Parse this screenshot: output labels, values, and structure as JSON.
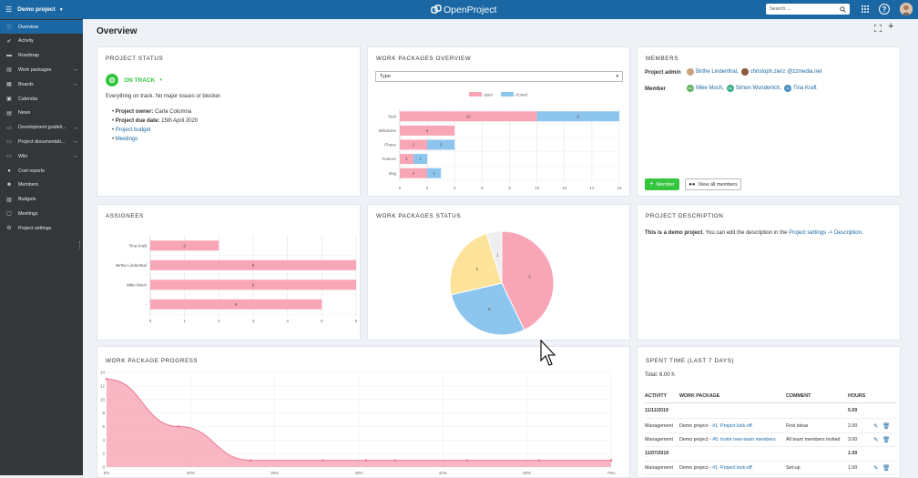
{
  "topbar": {
    "project_name": "Demo project",
    "logo_text": "OpenProject",
    "search_placeholder": "Search ..."
  },
  "sidebar": {
    "items": [
      {
        "label": "Overview",
        "icon": "info-icon",
        "active": true,
        "arrow": false
      },
      {
        "label": "Activity",
        "icon": "checkmark-icon",
        "active": false,
        "arrow": false
      },
      {
        "label": "Roadmap",
        "icon": "roadmap-icon",
        "active": false,
        "arrow": false
      },
      {
        "label": "Work packages",
        "icon": "work-packages-icon",
        "active": false,
        "arrow": true
      },
      {
        "label": "Boards",
        "icon": "boards-icon",
        "active": false,
        "arrow": true
      },
      {
        "label": "Calendar",
        "icon": "calendar-icon",
        "active": false,
        "arrow": false
      },
      {
        "label": "News",
        "icon": "news-icon",
        "active": false,
        "arrow": false
      },
      {
        "label": "Development guideli...",
        "icon": "forum-icon",
        "active": false,
        "arrow": true
      },
      {
        "label": "Project documentati...",
        "icon": "forum-icon",
        "active": false,
        "arrow": true
      },
      {
        "label": "Wiki",
        "icon": "wiki-icon",
        "active": false,
        "arrow": true
      },
      {
        "label": "Cost reports",
        "icon": "cost-reports-icon",
        "active": false,
        "arrow": false
      },
      {
        "label": "Members",
        "icon": "members-icon",
        "active": false,
        "arrow": false
      },
      {
        "label": "Budgets",
        "icon": "budgets-icon",
        "active": false,
        "arrow": false
      },
      {
        "label": "Meetings",
        "icon": "meetings-icon",
        "active": false,
        "arrow": false
      },
      {
        "label": "Project settings",
        "icon": "settings-icon",
        "active": false,
        "arrow": false
      }
    ]
  },
  "page": {
    "title": "Overview"
  },
  "project_status": {
    "title": "PROJECT STATUS",
    "status": "ON TRACK",
    "status_color": "#35c53f",
    "description": "Everything on track. No major issues or blocker.",
    "owner_label": "Project owner:",
    "owner_value": "Carla Columna",
    "due_label": "Project due date:",
    "due_value": "15th April 2020",
    "link_budget": "Project budget",
    "link_meetings": "Meetings"
  },
  "wp_overview": {
    "title": "WORK PACKAGES OVERVIEW",
    "select_value": "Type"
  },
  "members": {
    "title": "MEMBERS",
    "admin_label": "Project admin",
    "admins": [
      {
        "name": "Birthe Lindenthal",
        "initials": "",
        "avatar_color": "#c9a27e",
        "suffix": ","
      },
      {
        "name": "christoph.zierz @zzmedia.net",
        "initials": "",
        "avatar_color": "#8a5a3a",
        "suffix": ""
      }
    ],
    "member_label": "Member",
    "members": [
      {
        "name": "Mike Moch",
        "initials": "MM",
        "avatar_color": "#5fb35f",
        "suffix": ","
      },
      {
        "name": "Simon Wunderlich",
        "initials": "SW",
        "avatar_color": "#3cae86",
        "suffix": ","
      },
      {
        "name": "Tina Kraft",
        "initials": "TK",
        "avatar_color": "#4a8fc0",
        "suffix": ""
      }
    ],
    "add_button": "Member",
    "view_all_button": "View all members"
  },
  "assignees": {
    "title": "ASSIGNEES"
  },
  "wp_status": {
    "title": "WORK PACKAGES STATUS"
  },
  "project_description": {
    "title": "PROJECT DESCRIPTION",
    "text_bold": "This is a demo project",
    "text_mid": ". You can edit the description in the ",
    "link": "Project settings -> Description",
    "text_end": "."
  },
  "wp_progress": {
    "title": "WORK PACKAGE PROGRESS"
  },
  "spent_time": {
    "title": "SPENT TIME (LAST 7 DAYS)",
    "total": "Total: 6.00 h",
    "columns": [
      "ACTIVITY",
      "WORK PACKAGE",
      "COMMENT",
      "HOURS"
    ],
    "rows": [
      {
        "type": "date",
        "activity": "11/11/2019",
        "hours": "5.00"
      },
      {
        "type": "entry",
        "activity": "Management",
        "wp_prefix": "Demo project - ",
        "wp_link": "#1: Project kick-off",
        "comment": "First ideas",
        "hours": "2.00"
      },
      {
        "type": "entry",
        "activity": "Management",
        "wp_prefix": "Demo project - ",
        "wp_link": "#6: Invite new team members",
        "comment": "All team members invited",
        "hours": "3.00"
      },
      {
        "type": "date",
        "activity": "11/07/2019",
        "hours": "1.00"
      },
      {
        "type": "entry",
        "activity": "Management",
        "wp_prefix": "Demo project - ",
        "wp_link": "#1: Project kick-off",
        "comment": "Set-up",
        "hours": "1.00"
      }
    ]
  },
  "colors": {
    "brand": "#1a67a3",
    "open": "#f8a5b5",
    "closed": "#8cc5ee",
    "sidebar": "#333739",
    "success": "#35c53f"
  },
  "chart_data": [
    {
      "type": "bar",
      "orientation": "horizontal",
      "stacked": true,
      "title": "",
      "categories": [
        "Task",
        "Milestone",
        "Phase",
        "Feature",
        "Bug"
      ],
      "series": [
        {
          "name": "open",
          "values": [
            10,
            4,
            2,
            1,
            2
          ],
          "color": "#f8a5b5"
        },
        {
          "name": "closed",
          "values": [
            6,
            0,
            2,
            1,
            1
          ],
          "color": "#8cc5ee"
        }
      ],
      "xlim": [
        0,
        16
      ],
      "xticks": [
        0,
        2,
        4,
        6,
        8,
        10,
        12,
        14,
        16
      ],
      "legend": "top"
    },
    {
      "type": "bar",
      "orientation": "horizontal",
      "title": "",
      "categories": [
        "Tina Kraft",
        "Birthe Lindenthal",
        "Mike Moch",
        "-"
      ],
      "values": [
        2,
        6,
        6,
        5
      ],
      "xlim": [
        0,
        6
      ],
      "xticks": [
        0,
        1,
        2,
        3,
        4,
        5,
        6
      ],
      "color": "#f8a5b5"
    },
    {
      "type": "pie",
      "title": "",
      "values": [
        9,
        6,
        5,
        1
      ],
      "colors": [
        "#f8a5b5",
        "#8cc5ee",
        "#fde29a",
        "#eeeeee"
      ]
    },
    {
      "type": "area",
      "title": "",
      "x": [
        "0%",
        "10%",
        "20%",
        "30%",
        "36%",
        "40%",
        "50%",
        "60%",
        "70%"
      ],
      "x_values": [
        0,
        10,
        20,
        30,
        36,
        40,
        50,
        60,
        70
      ],
      "y": [
        13,
        6,
        1,
        1,
        1,
        1,
        1,
        1,
        1
      ],
      "xticks": [
        "0%",
        "20%",
        "36%",
        "40%",
        "42%",
        "50%",
        "70%"
      ],
      "yticks": [
        0,
        2,
        4,
        6,
        8,
        10,
        12,
        14
      ],
      "ylim": [
        0,
        14
      ],
      "color": "#f8a5b5"
    }
  ]
}
